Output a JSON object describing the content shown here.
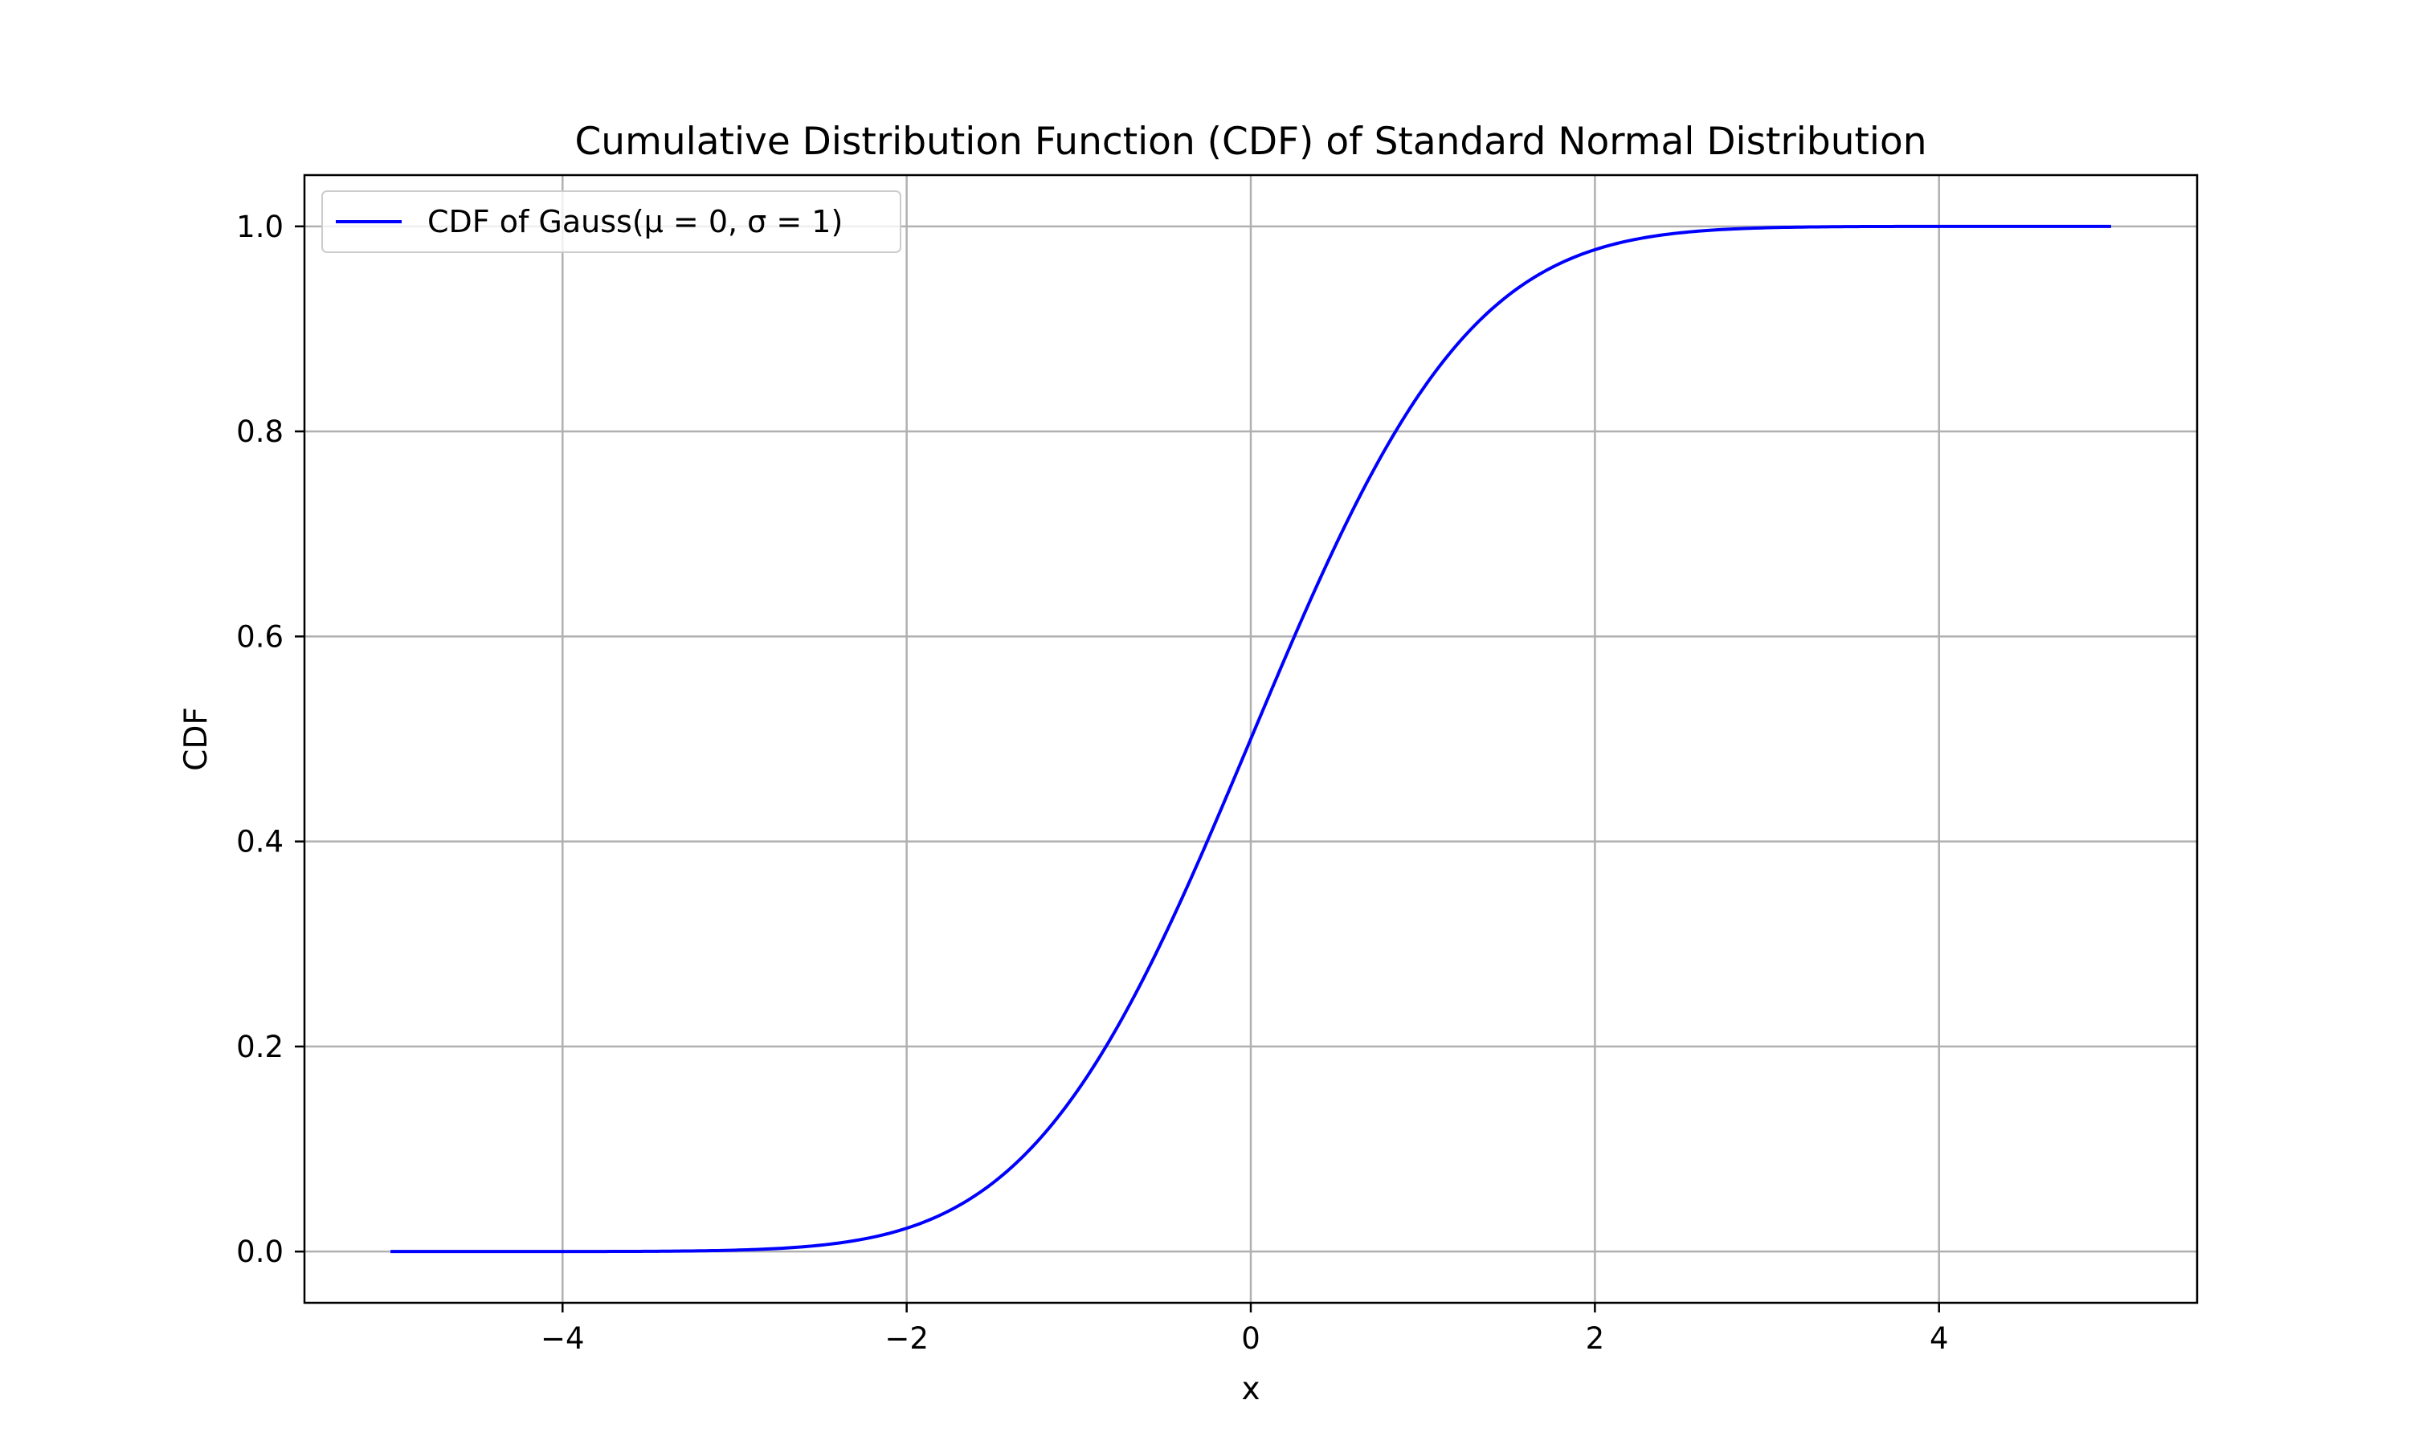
{
  "chart_data": {
    "type": "line",
    "title": "Cumulative Distribution Function (CDF) of Standard Normal Distribution",
    "xlabel": "x",
    "ylabel": "CDF",
    "xlim": [
      -5.5,
      5.5
    ],
    "ylim": [
      -0.05,
      1.05
    ],
    "x_ticks": [
      -4,
      -2,
      0,
      2,
      4
    ],
    "x_tick_labels": [
      "−4",
      "−2",
      "0",
      "2",
      "4"
    ],
    "y_ticks": [
      0.0,
      0.2,
      0.4,
      0.6,
      0.8,
      1.0
    ],
    "y_tick_labels": [
      "0.0",
      "0.2",
      "0.4",
      "0.6",
      "0.8",
      "1.0"
    ],
    "grid": true,
    "legend_position": "top-left",
    "series": [
      {
        "name": "CDF of Gauss(μ = 0, σ = 1)",
        "color": "#0000ff",
        "x": [
          -5.0,
          -4.5,
          -4.0,
          -3.5,
          -3.0,
          -2.75,
          -2.5,
          -2.25,
          -2.0,
          -1.75,
          -1.5,
          -1.25,
          -1.0,
          -0.75,
          -0.5,
          -0.25,
          0.0,
          0.25,
          0.5,
          0.75,
          1.0,
          1.25,
          1.5,
          1.75,
          2.0,
          2.25,
          2.5,
          2.75,
          3.0,
          3.5,
          4.0,
          4.5,
          5.0
        ],
        "y": [
          0.0,
          0.0,
          0.0,
          0.0002,
          0.0013,
          0.003,
          0.0062,
          0.0122,
          0.0228,
          0.0401,
          0.0668,
          0.1056,
          0.1587,
          0.2266,
          0.3085,
          0.4013,
          0.5,
          0.5987,
          0.6915,
          0.7734,
          0.8413,
          0.8944,
          0.9332,
          0.9599,
          0.9772,
          0.9878,
          0.9938,
          0.997,
          0.9987,
          0.9998,
          1.0,
          1.0,
          1.0
        ]
      }
    ]
  }
}
